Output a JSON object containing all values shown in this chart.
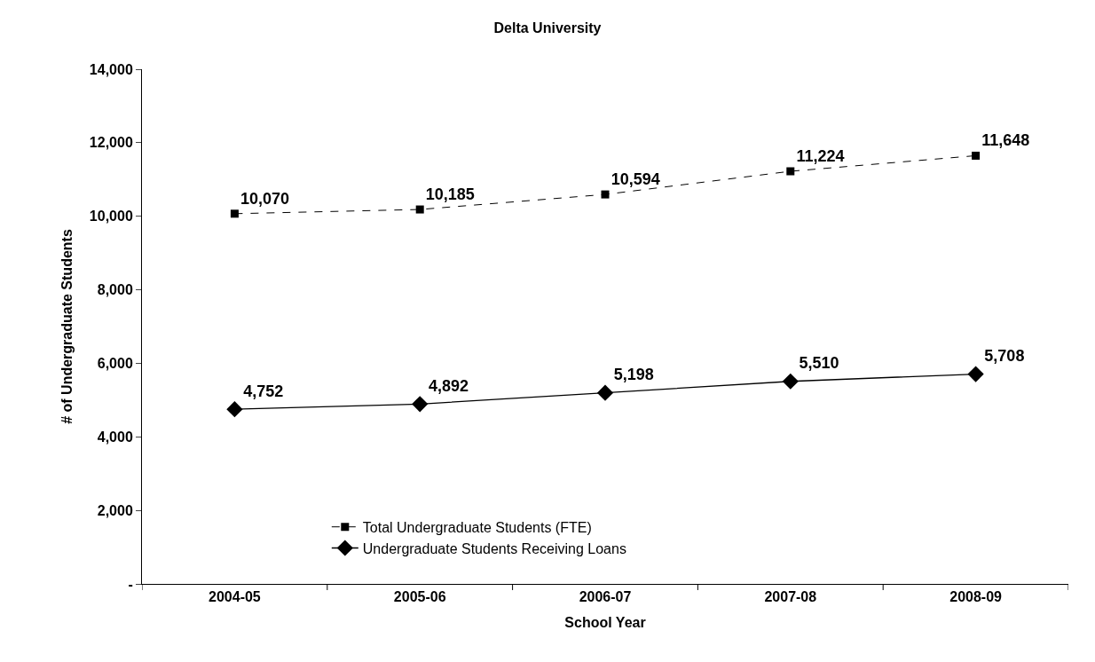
{
  "chart_data": {
    "type": "line",
    "title": "Delta University",
    "xlabel": "School Year",
    "ylabel": "# of Undergraduate Students",
    "categories": [
      "2004-05",
      "2005-06",
      "2006-07",
      "2007-08",
      "2008-09"
    ],
    "series": [
      {
        "name": "Total Undergraduate Students (FTE)",
        "color": "#000000",
        "values": [
          10070,
          10185,
          10594,
          11224,
          11648
        ],
        "value_labels": [
          "10,070",
          "10,185",
          "10,594",
          "11,224",
          "11,648"
        ],
        "marker": "square",
        "line_style": "dashed"
      },
      {
        "name": "Undergraduate Students Receiving Loans",
        "color": "#000000",
        "values": [
          4752,
          4892,
          5198,
          5510,
          5708
        ],
        "value_labels": [
          "4,752",
          "4,892",
          "5,198",
          "5,510",
          "5,708"
        ],
        "marker": "diamond",
        "line_style": "solid"
      }
    ],
    "ylim": [
      0,
      14000
    ],
    "yticks": [
      {
        "value": 0,
        "label": "-"
      },
      {
        "value": 2000,
        "label": "2,000"
      },
      {
        "value": 4000,
        "label": "4,000"
      },
      {
        "value": 6000,
        "label": "6,000"
      },
      {
        "value": 8000,
        "label": "8,000"
      },
      {
        "value": 10000,
        "label": "10,000"
      },
      {
        "value": 12000,
        "label": "12,000"
      },
      {
        "value": 14000,
        "label": "14,000"
      }
    ],
    "legend": "bottom"
  }
}
